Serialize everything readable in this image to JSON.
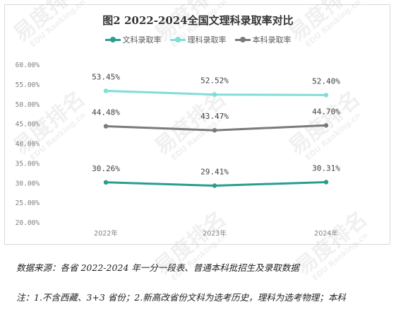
{
  "chart_data": {
    "type": "line",
    "title": "图2 2022-2024全国文理科录取率对比",
    "categories": [
      "2022年",
      "2023年",
      "2024年"
    ],
    "ylim": [
      20,
      60
    ],
    "yticks": [
      "20.00%",
      "25.00%",
      "30.00%",
      "35.00%",
      "40.00%",
      "45.00%",
      "50.00%",
      "55.00%",
      "60.00%"
    ],
    "legend_position": "top-center",
    "grid": false,
    "series": [
      {
        "name": "文科录取率",
        "color": "#2a9d8f",
        "values": [
          30.26,
          29.41,
          30.31
        ],
        "labels": [
          "30.26%",
          "29.41%",
          "30.31%"
        ]
      },
      {
        "name": "理科录取率",
        "color": "#7fded7",
        "values": [
          53.45,
          52.52,
          52.4
        ],
        "labels": [
          "53.45%",
          "52.52%",
          "52.40%"
        ]
      },
      {
        "name": "本科录取率",
        "color": "#7a7a7a",
        "values": [
          44.48,
          43.47,
          44.7
        ],
        "labels": [
          "44.48%",
          "43.47%",
          "44.70%"
        ]
      }
    ]
  },
  "source_text": "数据来源：各省 2022-2024 年一分一段表、普通本科批招生及录取数据",
  "note_text": "注：1.不含西藏、3+3 省份；2.新高改省份文科为选考历史，理科为选考物理；本科",
  "watermark": {
    "brand": "易度排名",
    "sub": "EDU Ranking.cn"
  }
}
